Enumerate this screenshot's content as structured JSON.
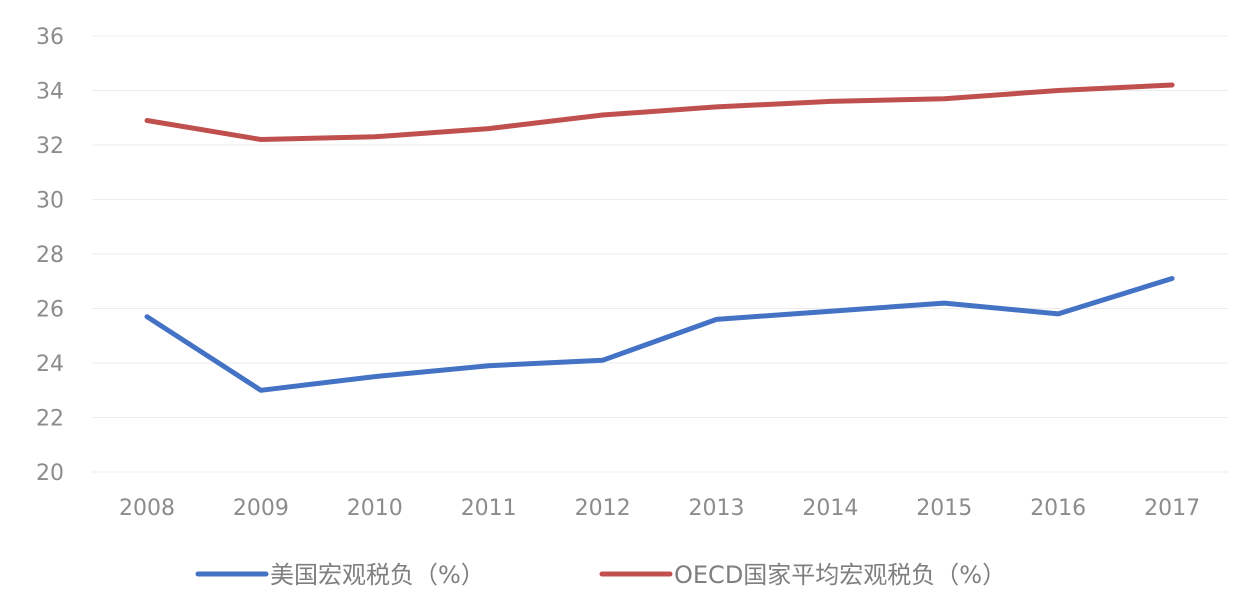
{
  "chart_data": {
    "type": "line",
    "categories": [
      "2008",
      "2009",
      "2010",
      "2011",
      "2012",
      "2013",
      "2014",
      "2015",
      "2016",
      "2017"
    ],
    "ylim": [
      20,
      36
    ],
    "yticks": [
      20,
      22,
      24,
      26,
      28,
      30,
      32,
      34,
      36
    ],
    "grid": true,
    "legend_position": "bottom",
    "series": [
      {
        "name": "美国宏观税负（%）",
        "color": "#4472c4",
        "values": [
          25.7,
          23.0,
          23.5,
          23.9,
          24.1,
          25.6,
          25.9,
          26.2,
          25.8,
          27.1
        ]
      },
      {
        "name": "OECD国家平均宏观税负（%）",
        "color": "#c0504d",
        "values": [
          32.9,
          32.2,
          32.3,
          32.6,
          33.1,
          33.4,
          33.6,
          33.7,
          34.0,
          34.2
        ]
      }
    ]
  }
}
